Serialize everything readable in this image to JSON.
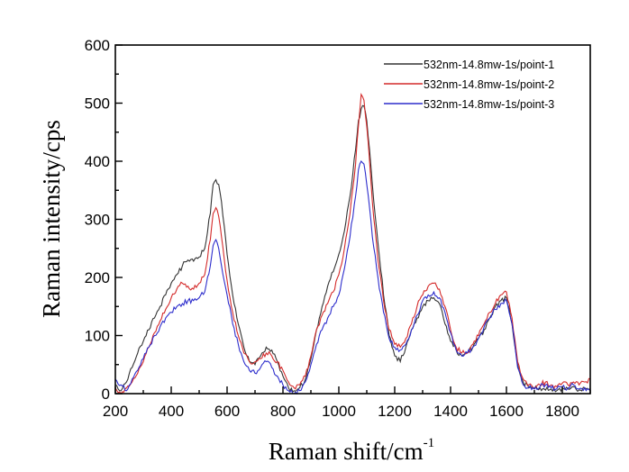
{
  "chart_data": {
    "type": "line",
    "title": "",
    "xlabel": "Raman shift/cm",
    "xlabel_superscript": "-1",
    "ylabel": "Raman intensity/cps",
    "xlim": [
      200,
      1900
    ],
    "ylim": [
      0,
      600
    ],
    "grid": false,
    "legend_position": "top-right",
    "x_ticks": [
      200,
      400,
      600,
      800,
      1000,
      1200,
      1400,
      1600,
      1800
    ],
    "x_tick_labels": [
      "200",
      "400",
      "600",
      "800",
      "1000",
      "1200",
      "1400",
      "1600",
      "1800"
    ],
    "y_ticks": [
      0,
      100,
      200,
      300,
      400,
      500,
      600
    ],
    "y_tick_labels": [
      "0",
      "100",
      "200",
      "300",
      "400",
      "500",
      "600"
    ],
    "x": [
      200,
      220,
      240,
      260,
      280,
      300,
      320,
      340,
      360,
      380,
      400,
      420,
      440,
      460,
      480,
      500,
      520,
      540,
      550,
      560,
      570,
      580,
      600,
      620,
      640,
      660,
      680,
      700,
      720,
      740,
      760,
      780,
      800,
      820,
      840,
      860,
      880,
      900,
      920,
      940,
      960,
      980,
      1000,
      1020,
      1040,
      1060,
      1070,
      1080,
      1090,
      1100,
      1110,
      1120,
      1140,
      1160,
      1180,
      1200,
      1220,
      1240,
      1260,
      1280,
      1300,
      1320,
      1340,
      1360,
      1380,
      1400,
      1420,
      1440,
      1460,
      1480,
      1500,
      1520,
      1540,
      1560,
      1580,
      1600,
      1620,
      1640,
      1660,
      1680,
      1700,
      1720,
      1740,
      1760,
      1780,
      1800,
      1820,
      1840,
      1860,
      1880,
      1900
    ],
    "series": [
      {
        "name": "532nm-14.8mw-1s/point-1",
        "color": "#333333",
        "values": [
          15,
          5,
          20,
          45,
          70,
          90,
          110,
          130,
          150,
          170,
          190,
          205,
          220,
          230,
          228,
          235,
          250,
          310,
          360,
          368,
          360,
          330,
          240,
          170,
          120,
          80,
          55,
          50,
          65,
          80,
          75,
          55,
          30,
          10,
          5,
          10,
          25,
          60,
          110,
          150,
          185,
          210,
          240,
          280,
          340,
          420,
          470,
          490,
          495,
          470,
          420,
          360,
          260,
          170,
          100,
          65,
          55,
          80,
          110,
          130,
          150,
          160,
          165,
          155,
          120,
          90,
          75,
          65,
          70,
          80,
          95,
          110,
          130,
          150,
          160,
          165,
          120,
          50,
          20,
          10,
          8,
          10,
          6,
          8,
          5,
          10,
          8,
          12,
          6,
          10,
          8
        ]
      },
      {
        "name": "532nm-14.8mw-1s/point-2",
        "color": "#d42a2a",
        "values": [
          10,
          0,
          10,
          20,
          35,
          55,
          80,
          105,
          125,
          145,
          165,
          180,
          190,
          185,
          180,
          190,
          205,
          265,
          310,
          320,
          305,
          270,
          195,
          140,
          100,
          70,
          55,
          55,
          60,
          70,
          65,
          55,
          40,
          20,
          10,
          15,
          30,
          65,
          110,
          135,
          155,
          175,
          205,
          250,
          310,
          395,
          460,
          515,
          505,
          460,
          400,
          330,
          230,
          160,
          110,
          85,
          80,
          95,
          120,
          150,
          170,
          185,
          190,
          180,
          150,
          110,
          80,
          70,
          70,
          85,
          100,
          120,
          140,
          155,
          170,
          175,
          130,
          55,
          25,
          15,
          10,
          15,
          20,
          15,
          12,
          18,
          15,
          20,
          15,
          20,
          25
        ]
      },
      {
        "name": "532nm-14.8mw-1s/point-3",
        "color": "#2d2dcc",
        "values": [
          25,
          15,
          5,
          25,
          40,
          60,
          80,
          100,
          115,
          130,
          140,
          150,
          155,
          160,
          160,
          165,
          175,
          220,
          255,
          265,
          250,
          220,
          170,
          120,
          85,
          55,
          40,
          35,
          45,
          55,
          45,
          30,
          15,
          5,
          0,
          5,
          20,
          50,
          85,
          110,
          130,
          150,
          170,
          215,
          270,
          340,
          385,
          400,
          395,
          360,
          320,
          270,
          200,
          140,
          95,
          80,
          75,
          85,
          110,
          135,
          160,
          170,
          175,
          165,
          140,
          105,
          75,
          65,
          70,
          80,
          95,
          115,
          130,
          145,
          155,
          160,
          120,
          45,
          15,
          10,
          8,
          12,
          15,
          10,
          8,
          12,
          10,
          15,
          8,
          10,
          6
        ]
      }
    ]
  }
}
